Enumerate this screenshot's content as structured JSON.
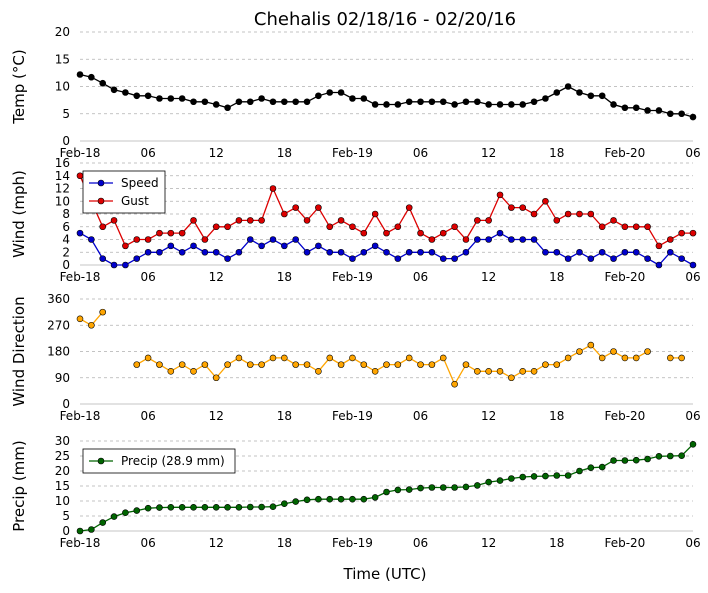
{
  "title": "Chehalis 02/18/16 - 02/20/16",
  "xlabel": "Time (UTC)",
  "x_ticks": [
    "Feb-18",
    "06",
    "12",
    "18",
    "Feb-19",
    "06",
    "12",
    "18",
    "Feb-20",
    "06"
  ],
  "chart_data": [
    {
      "type": "line",
      "ylabel": "Temp (°C)",
      "ylim": [
        0,
        20
      ],
      "yticks": [
        0,
        5,
        10,
        15,
        20
      ],
      "grid": true,
      "series": [
        {
          "color": "#000000",
          "x": [
            0,
            1,
            2,
            3,
            4,
            5,
            6,
            7,
            8,
            9,
            10,
            11,
            12,
            13,
            14,
            15,
            16,
            17,
            18,
            19,
            20,
            21,
            22,
            23,
            24,
            25,
            26,
            27,
            28,
            29,
            30,
            31,
            32,
            33,
            34,
            35,
            36,
            37,
            38,
            39,
            40,
            41,
            42,
            43,
            44,
            45,
            46,
            47,
            48,
            49,
            50,
            51,
            52,
            53,
            54
          ],
          "values": [
            12.2,
            11.7,
            10.6,
            9.4,
            8.9,
            8.3,
            8.3,
            7.8,
            7.8,
            7.8,
            7.2,
            7.2,
            6.7,
            6.1,
            7.2,
            7.2,
            7.8,
            7.2,
            7.2,
            7.2,
            7.2,
            8.3,
            8.9,
            8.9,
            7.8,
            7.8,
            6.7,
            6.7,
            6.7,
            7.2,
            7.2,
            7.2,
            7.2,
            6.7,
            7.2,
            7.2,
            6.7,
            6.7,
            6.7,
            6.7,
            7.2,
            7.8,
            8.9,
            10.0,
            8.9,
            8.3,
            8.3,
            6.7,
            6.1,
            6.1,
            5.6,
            5.6,
            5.0,
            5.0,
            4.4
          ]
        }
      ]
    },
    {
      "type": "line",
      "ylabel": "Wind (mph)",
      "ylim": [
        0,
        16
      ],
      "yticks": [
        0,
        2,
        4,
        6,
        8,
        10,
        12,
        14,
        16
      ],
      "grid": true,
      "legend": "top-left",
      "series": [
        {
          "name": "Speed",
          "color": "#0000cc",
          "x": [
            0,
            1,
            2,
            3,
            4,
            5,
            6,
            7,
            8,
            9,
            10,
            11,
            12,
            13,
            14,
            15,
            16,
            17,
            18,
            19,
            20,
            21,
            22,
            23,
            24,
            25,
            26,
            27,
            28,
            29,
            30,
            31,
            32,
            33,
            34,
            35,
            36,
            37,
            38,
            39,
            40,
            41,
            42,
            43,
            44,
            45,
            46,
            47,
            48,
            49,
            50,
            51,
            52,
            53,
            54
          ],
          "values": [
            5,
            4,
            1,
            0,
            0,
            1,
            2,
            2,
            3,
            2,
            3,
            2,
            2,
            1,
            2,
            4,
            3,
            4,
            3,
            4,
            2,
            3,
            2,
            2,
            1,
            2,
            3,
            2,
            1,
            2,
            2,
            2,
            1,
            1,
            2,
            4,
            4,
            5,
            4,
            4,
            4,
            2,
            2,
            1,
            2,
            1,
            2,
            1,
            2,
            2,
            1,
            0,
            2,
            1,
            0
          ]
        },
        {
          "name": "Gust",
          "color": "#dd0000",
          "x": [
            0,
            1,
            2,
            3,
            4,
            5,
            6,
            7,
            8,
            9,
            10,
            11,
            12,
            13,
            14,
            15,
            16,
            17,
            18,
            19,
            20,
            21,
            22,
            23,
            24,
            25,
            26,
            27,
            28,
            29,
            30,
            31,
            32,
            33,
            34,
            35,
            36,
            37,
            38,
            39,
            40,
            41,
            42,
            43,
            44,
            45,
            46,
            47,
            48,
            49,
            50,
            51,
            52,
            53,
            54
          ],
          "values": [
            14,
            10,
            6,
            7,
            3,
            4,
            4,
            5,
            5,
            5,
            7,
            4,
            6,
            6,
            7,
            7,
            7,
            12,
            8,
            9,
            7,
            9,
            6,
            7,
            6,
            5,
            8,
            5,
            6,
            9,
            5,
            4,
            5,
            6,
            4,
            7,
            7,
            11,
            9,
            9,
            8,
            10,
            7,
            8,
            8,
            8,
            6,
            7,
            6,
            6,
            6,
            3,
            4,
            5,
            5
          ]
        }
      ]
    },
    {
      "type": "scatter",
      "ylabel": "Wind Direction",
      "ylim": [
        0,
        360
      ],
      "yticks": [
        0,
        90,
        180,
        270,
        360
      ],
      "grid": true,
      "series": [
        {
          "color": "#ffa500",
          "segments": [
            {
              "x": [
                0,
                1,
                2
              ],
              "values": [
                292,
                270,
                315
              ]
            },
            {
              "x": [
                5,
                6,
                7,
                8,
                9,
                10,
                11,
                12,
                13,
                14,
                15,
                16,
                17,
                18,
                19,
                20,
                21,
                22,
                23,
                24,
                25,
                26,
                27,
                28,
                29,
                30,
                31,
                32,
                33,
                34,
                35,
                36,
                37,
                38,
                39,
                40,
                41,
                42,
                43,
                44,
                45,
                46,
                47,
                48,
                49,
                50
              ],
              "values": [
                135,
                158,
                135,
                112,
                135,
                112,
                135,
                90,
                135,
                158,
                135,
                135,
                158,
                158,
                135,
                135,
                112,
                158,
                135,
                158,
                135,
                112,
                135,
                135,
                158,
                135,
                135,
                158,
                68,
                135,
                112,
                112,
                112,
                90,
                112,
                112,
                135,
                135,
                158,
                180,
                202,
                158,
                180,
                158,
                158,
                180
              ]
            },
            {
              "x": [
                52,
                53
              ],
              "values": [
                158,
                158
              ]
            }
          ]
        }
      ]
    },
    {
      "type": "line",
      "ylabel": "Precip (mm)",
      "ylim": [
        0,
        30
      ],
      "yticks": [
        0,
        5,
        10,
        15,
        20,
        25,
        30
      ],
      "grid": true,
      "legend": "top-left",
      "series": [
        {
          "name": "Precip (28.9 mm)",
          "color": "#006400",
          "x": [
            0,
            1,
            2,
            3,
            4,
            5,
            6,
            7,
            8,
            9,
            10,
            11,
            12,
            13,
            14,
            15,
            16,
            17,
            18,
            19,
            20,
            21,
            22,
            23,
            24,
            25,
            26,
            27,
            28,
            29,
            30,
            31,
            32,
            33,
            34,
            35,
            36,
            37,
            38,
            39,
            40,
            41,
            42,
            43,
            44,
            45,
            46,
            47,
            48,
            49,
            50,
            51,
            52,
            53,
            54
          ],
          "values": [
            0,
            0.5,
            2.8,
            4.8,
            6.1,
            6.8,
            7.6,
            7.8,
            7.9,
            7.9,
            7.9,
            7.9,
            7.9,
            7.9,
            7.9,
            8.0,
            8.0,
            8.1,
            9.1,
            9.8,
            10.4,
            10.6,
            10.6,
            10.6,
            10.6,
            10.6,
            11.2,
            13.0,
            13.7,
            13.8,
            14.3,
            14.5,
            14.5,
            14.5,
            14.7,
            15.2,
            16.3,
            16.8,
            17.5,
            18.0,
            18.2,
            18.3,
            18.5,
            18.5,
            20.0,
            21.1,
            21.3,
            23.5,
            23.5,
            23.6,
            24.0,
            24.9,
            25.0,
            25.1,
            28.9
          ]
        }
      ]
    }
  ]
}
